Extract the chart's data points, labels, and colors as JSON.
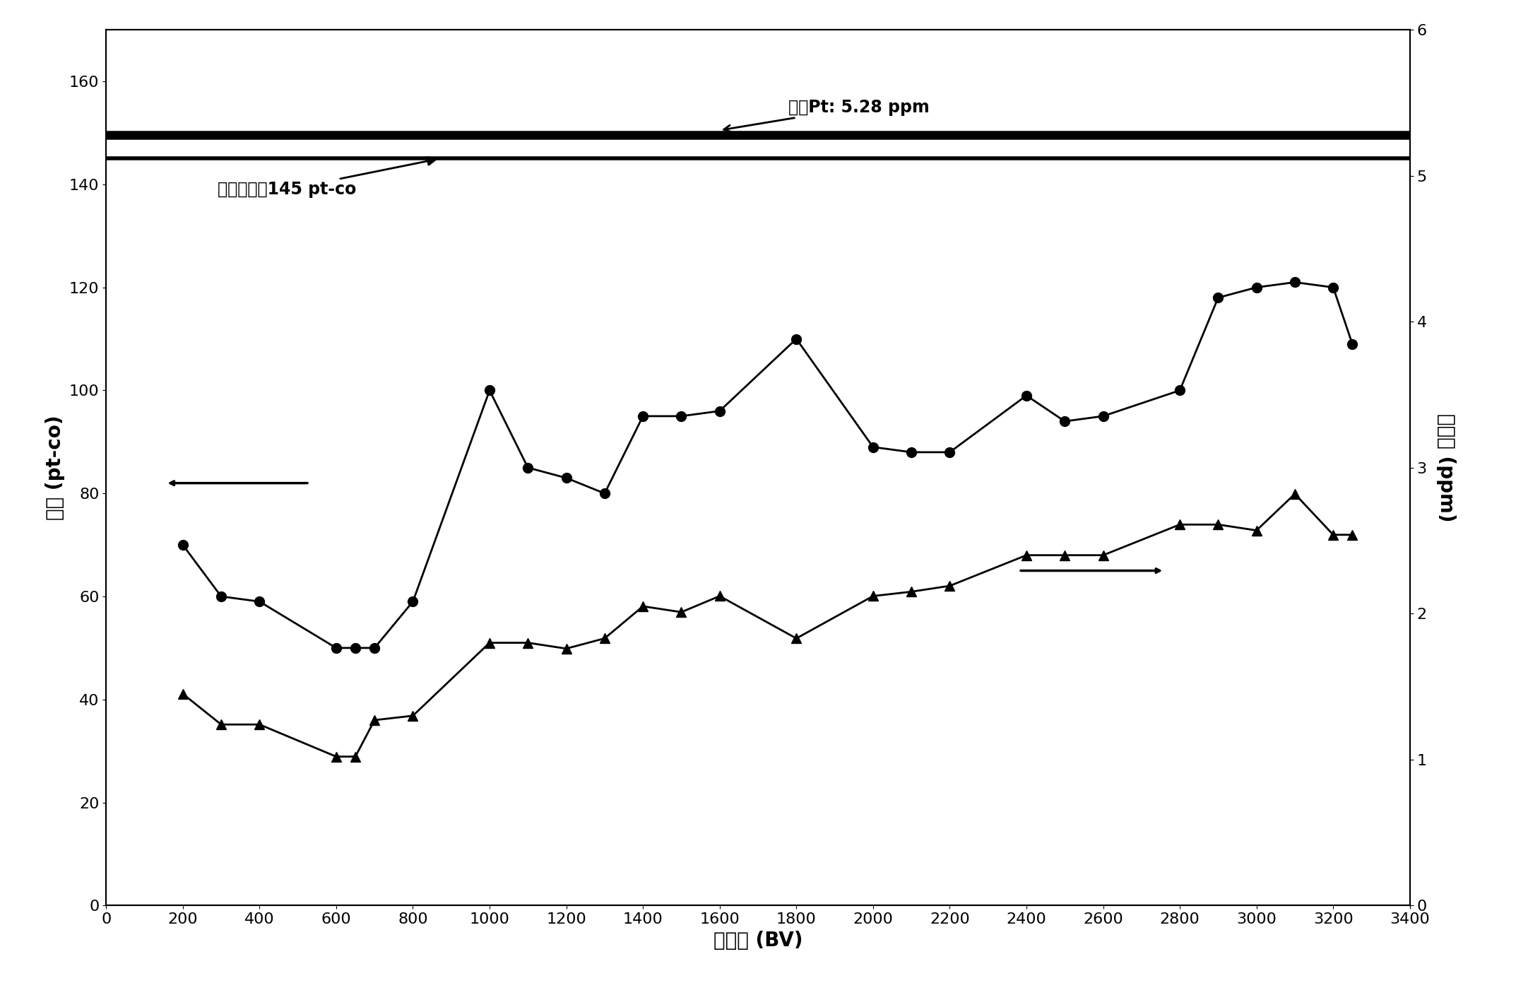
{
  "title": "",
  "xlabel": "床体积 (BV)",
  "ylabel_left": "色度 (pt-co)",
  "ylabel_right": "钓含量 (ppm)",
  "xlim": [
    0,
    3400
  ],
  "ylim_left": [
    0,
    170
  ],
  "ylim_right": [
    0,
    6
  ],
  "xticks": [
    0,
    200,
    400,
    600,
    800,
    1000,
    1200,
    1400,
    1600,
    1800,
    2000,
    2200,
    2400,
    2600,
    2800,
    3000,
    3200,
    3400
  ],
  "yticks_left": [
    0,
    20,
    40,
    60,
    80,
    100,
    120,
    140,
    160
  ],
  "yticks_right": [
    0,
    1,
    2,
    3,
    4,
    5,
    6
  ],
  "color_line_x": [
    200,
    300,
    400,
    600,
    650,
    700,
    800,
    1000,
    1100,
    1200,
    1300,
    1400,
    1500,
    1600,
    1800,
    2000,
    2100,
    2200,
    2400,
    2500,
    2600,
    2800,
    2900,
    3000,
    3100,
    3200,
    3250
  ],
  "color_line_y": [
    70,
    60,
    59,
    50,
    50,
    50,
    59,
    100,
    85,
    83,
    80,
    95,
    95,
    96,
    110,
    89,
    88,
    88,
    99,
    94,
    95,
    100,
    118,
    120,
    121,
    120,
    109
  ],
  "pt_line_x": [
    200,
    300,
    400,
    600,
    650,
    700,
    800,
    1000,
    1100,
    1200,
    1300,
    1400,
    1500,
    1600,
    1800,
    2000,
    2100,
    2200,
    2400,
    2500,
    2600,
    2800,
    2900,
    3000,
    3100,
    3200,
    3250
  ],
  "pt_line_y_ppm": [
    1.45,
    1.24,
    1.24,
    1.02,
    1.02,
    1.27,
    1.3,
    1.8,
    1.8,
    1.76,
    1.83,
    2.05,
    2.01,
    2.12,
    1.83,
    2.12,
    2.15,
    2.19,
    2.4,
    2.4,
    2.4,
    2.61,
    2.61,
    2.57,
    2.82,
    2.54,
    2.54
  ],
  "initial_color": 145,
  "initial_pt_ppm": 5.28,
  "initial_color_label": "初始色度：145 pt-co",
  "initial_pt_label": "初始Pt: 5.28 ppm",
  "background_color": "#ffffff",
  "line_color": "#000000",
  "marker_circle": "o",
  "marker_triangle": "^",
  "linewidth": 2.0,
  "markersize": 10,
  "fontsize_labels": 20,
  "fontsize_ticks": 16,
  "fontsize_annot": 17
}
